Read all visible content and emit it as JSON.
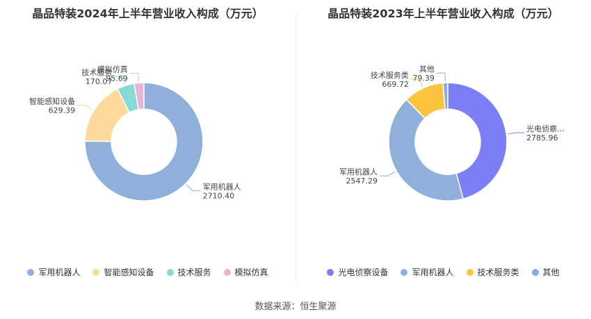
{
  "footer": "数据来源：恒生聚源",
  "chart_data": [
    {
      "type": "pie",
      "title": "晶品特装2024年上半年营业收入构成（万元）",
      "categories": [
        "军用机器人",
        "智能感知设备",
        "技术服务",
        "模拟仿真"
      ],
      "values": [
        2710.4,
        629.39,
        170.07,
        95.69
      ],
      "value_labels": [
        "2710.40",
        "629.39",
        "170.07",
        "95.69"
      ],
      "colors": [
        "#8fb0db",
        "#fdd99b",
        "#88d8d8",
        "#e6b6d8"
      ],
      "legend": "bottom",
      "start_angle": 0,
      "label_sides": [
        "right",
        "left",
        "left",
        "left"
      ]
    },
    {
      "type": "pie",
      "title": "晶品特装2023年上半年营业收入构成（万元）",
      "categories": [
        "光电侦察设备",
        "军用机器人",
        "技术服务类",
        "其他"
      ],
      "values": [
        2785.96,
        2547.29,
        669.72,
        79.39
      ],
      "value_labels": [
        "2785.96",
        "2547.29",
        "669.72",
        "79.39"
      ],
      "display_labels": [
        "光电侦察…",
        "军用机器人",
        "技术服务类",
        "其他"
      ],
      "colors": [
        "#7b7ef5",
        "#8fb0db",
        "#fcc43d",
        "#8aa8ef"
      ],
      "legend": "bottom",
      "start_angle": 0,
      "label_sides": [
        "right",
        "left",
        "left",
        "left"
      ]
    }
  ]
}
